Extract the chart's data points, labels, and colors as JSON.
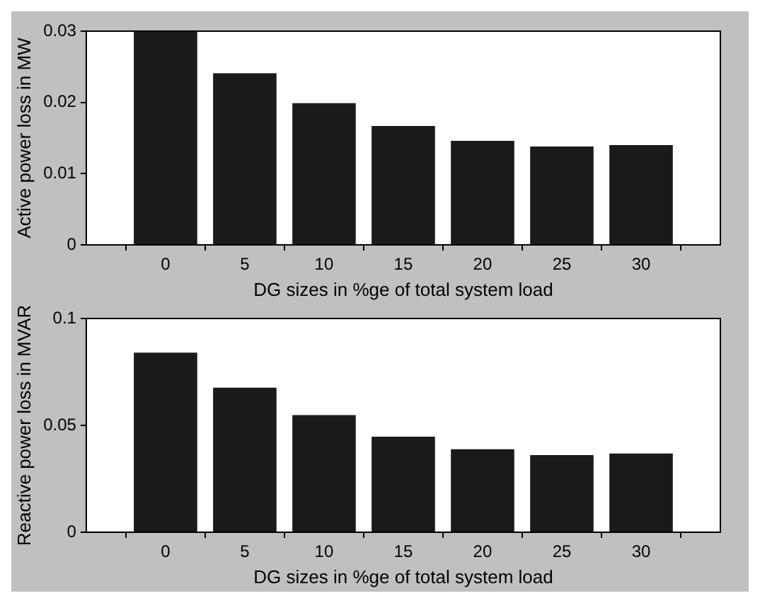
{
  "chart_data": [
    {
      "type": "bar",
      "x": [
        0,
        5,
        10,
        15,
        20,
        25,
        30
      ],
      "xlabel": "DG sizes in %ge of total system load",
      "ylabel": "Active power loss in MW",
      "series": [
        {
          "color": "#1a1a1a",
          "values": [
            0.03,
            0.0241,
            0.0199,
            0.0167,
            0.0146,
            0.0138,
            0.014
          ]
        }
      ],
      "xlim": [
        -5,
        35
      ],
      "xticks": [
        0,
        5,
        10,
        15,
        20,
        25,
        30
      ],
      "ylim": [
        0,
        0.03
      ],
      "yticks": [
        0,
        0.01,
        0.02,
        0.03
      ]
    },
    {
      "type": "bar",
      "x": [
        0,
        5,
        10,
        15,
        20,
        25,
        30
      ],
      "xlabel": "DG sizes in %ge of total system load",
      "ylabel": "Reactive power loss in MVAR",
      "series": [
        {
          "color": "#1a1a1a",
          "values": [
            0.084,
            0.0676,
            0.0548,
            0.0447,
            0.0388,
            0.0361,
            0.0368
          ]
        }
      ],
      "xlim": [
        -5,
        35
      ],
      "xticks": [
        0,
        5,
        10,
        15,
        20,
        25,
        30
      ],
      "ylim": [
        0,
        0.1
      ],
      "yticks": [
        0,
        0.05,
        0.1
      ]
    }
  ]
}
